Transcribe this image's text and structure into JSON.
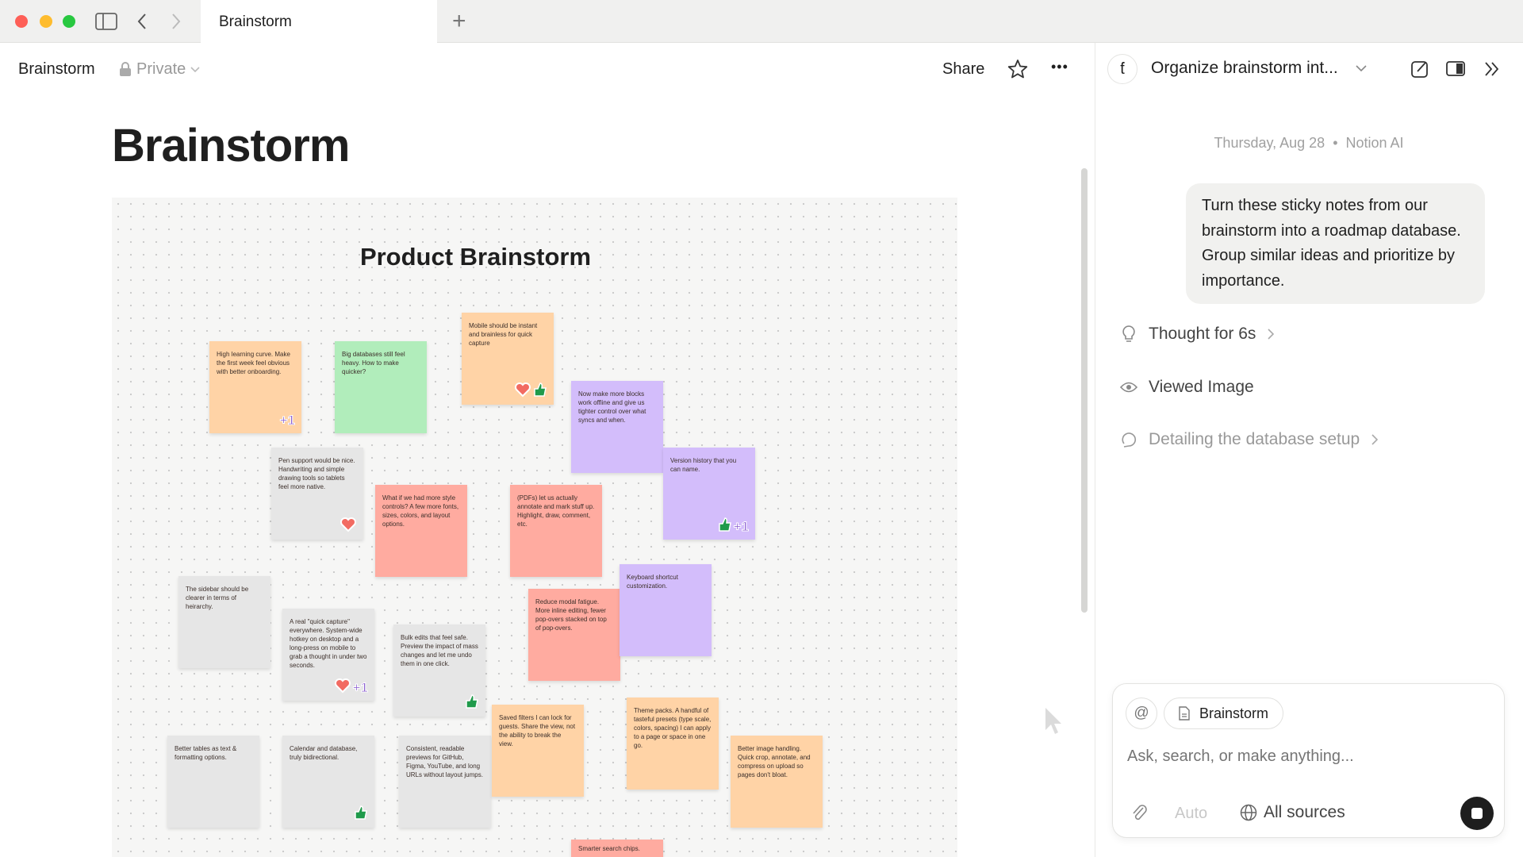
{
  "window": {
    "tab_title": "Brainstorm",
    "new_tab": "+"
  },
  "header": {
    "page_name": "Brainstorm",
    "privacy": "Private",
    "share": "Share",
    "more": "•••"
  },
  "page": {
    "title": "Brainstorm"
  },
  "canvas": {
    "title": "Product Brainstorm",
    "notes": [
      {
        "text": "High learning curve. Make the first week feel obvious with better onboarding.",
        "color": "orange",
        "stickers": [
          "plus-one"
        ]
      },
      {
        "text": "Big databases still feel heavy. How to make quicker?",
        "color": "green",
        "stickers": []
      },
      {
        "text": "Mobile should be instant and brainless for quick capture",
        "color": "orange",
        "stickers": [
          "heart",
          "thumbs-up"
        ]
      },
      {
        "text": "Now make more blocks work offline and give us tighter control over what syncs and when.",
        "color": "purple",
        "stickers": []
      },
      {
        "text": "Version history that you can name.",
        "color": "purple",
        "stickers": [
          "thumbs-up",
          "plus-one"
        ]
      },
      {
        "text": "Pen support would be nice. Handwriting and simple drawing tools so tablets feel more native.",
        "color": "gray",
        "stickers": [
          "heart"
        ]
      },
      {
        "text": "What if we had more style controls? A few more fonts, sizes, colors, and layout options.",
        "color": "red",
        "stickers": []
      },
      {
        "text": "(PDFs) let us actually annotate and mark stuff up. Highlight, draw, comment, etc.",
        "color": "red",
        "stickers": []
      },
      {
        "text": "The sidebar should be clearer in terms of heirarchy.",
        "color": "gray",
        "stickers": []
      },
      {
        "text": "A real \"quick capture\" everywhere. System-wide hotkey on desktop and a long-press on mobile to grab a thought in under two seconds.",
        "color": "gray",
        "stickers": [
          "heart",
          "plus-one"
        ]
      },
      {
        "text": "Bulk edits that feel safe. Preview the impact of mass changes and let me undo them in one click.",
        "color": "gray",
        "stickers": [
          "thumbs-up"
        ]
      },
      {
        "text": "Reduce modal fatigue. More inline editing, fewer pop-overs stacked on top of pop-overs.",
        "color": "red",
        "stickers": []
      },
      {
        "text": "Keyboard shortcut customization.",
        "color": "purple",
        "stickers": []
      },
      {
        "text": "Better tables as text & formatting options.",
        "color": "gray",
        "stickers": []
      },
      {
        "text": "Calendar and database, truly bidirectional.",
        "color": "gray",
        "stickers": [
          "thumbs-up"
        ]
      },
      {
        "text": "Consistent, readable previews for GitHub, Figma, YouTube, and long URLs without layout jumps.",
        "color": "gray",
        "stickers": []
      },
      {
        "text": "Saved filters I can lock for guests. Share the view, not the ability to break the view.",
        "color": "orange",
        "stickers": []
      },
      {
        "text": "Theme packs. A handful of tasteful presets (type scale, colors, spacing) I can apply to a page or space in one go.",
        "color": "orange",
        "stickers": []
      },
      {
        "text": "Better image handling. Quick crop, annotate, and compress on upload so pages don't bloat.",
        "color": "orange",
        "stickers": []
      },
      {
        "text": "Smarter search chips.",
        "color": "red",
        "stickers": []
      }
    ],
    "note_colors": {
      "orange": "#ffd3a6",
      "green": "#b1edbb",
      "purple": "#d3bdfb",
      "gray": "#e6e6e6",
      "red": "#ffaba0"
    },
    "sticker_colors": {
      "heart": "#f26b62",
      "thumbs-up": "#1f9a4b",
      "plus-one": "#8f63d2"
    }
  },
  "ai_panel": {
    "conversation_title": "Organize brainstorm int...",
    "date": "Thursday, Aug 28",
    "author": "Notion AI",
    "user_message": "Turn these sticky notes from our brainstorm into a roadmap database. Group similar ideas and prioritize by importance.",
    "steps": [
      {
        "label": "Thought for 6s",
        "icon": "lightbulb-icon"
      },
      {
        "label": "Viewed Image",
        "icon": "eye-icon"
      },
      {
        "label": "Detailing the database setup",
        "icon": "loading-icon"
      }
    ],
    "input": {
      "context_chip": "Brainstorm",
      "placeholder": "Ask, search, or make anything...",
      "mode": "Auto",
      "sources": "All sources"
    }
  }
}
